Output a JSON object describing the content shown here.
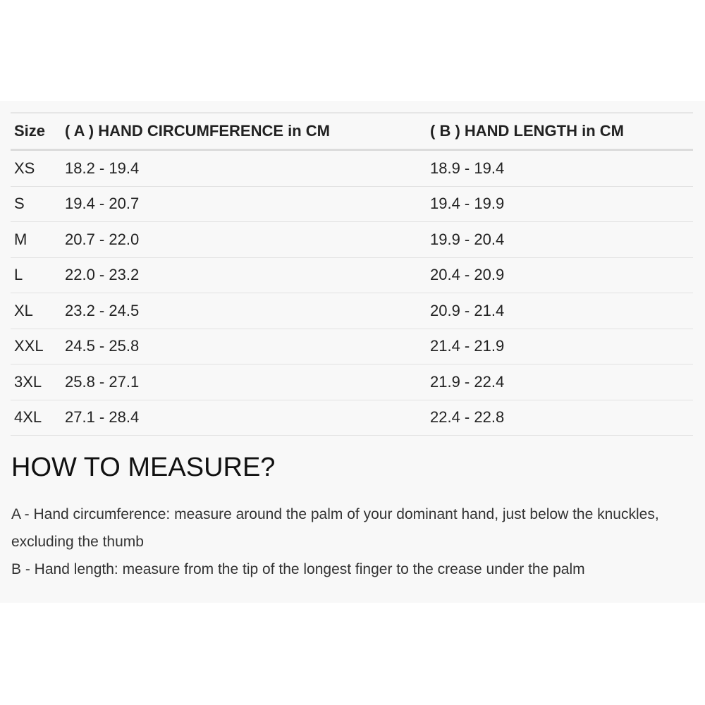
{
  "table": {
    "headers": [
      "Size",
      "( A ) HAND CIRCUMFERENCE in CM",
      "( B ) HAND LENGTH in CM"
    ],
    "rows": [
      [
        "XS",
        "18.2 - 19.4",
        "18.9 - 19.4"
      ],
      [
        "S",
        "19.4 - 20.7",
        "19.4 - 19.9"
      ],
      [
        "M",
        "20.7 - 22.0",
        "19.9 - 20.4"
      ],
      [
        "L",
        "22.0 - 23.2",
        "20.4 - 20.9"
      ],
      [
        "XL",
        "23.2 - 24.5",
        "20.9 - 21.4"
      ],
      [
        "XXL",
        "24.5 - 25.8",
        "21.4 - 21.9"
      ],
      [
        "3XL",
        "25.8 - 27.1",
        "21.9 - 22.4"
      ],
      [
        "4XL",
        "27.1 - 28.4",
        "22.4 - 22.8"
      ]
    ]
  },
  "measure": {
    "title": "HOW TO MEASURE?",
    "a": "A - Hand circumference: measure around the palm of your dominant hand, just below the knuckles, excluding the thumb",
    "b": "B - Hand length: measure from the tip of the longest finger to the crease under the palm"
  }
}
